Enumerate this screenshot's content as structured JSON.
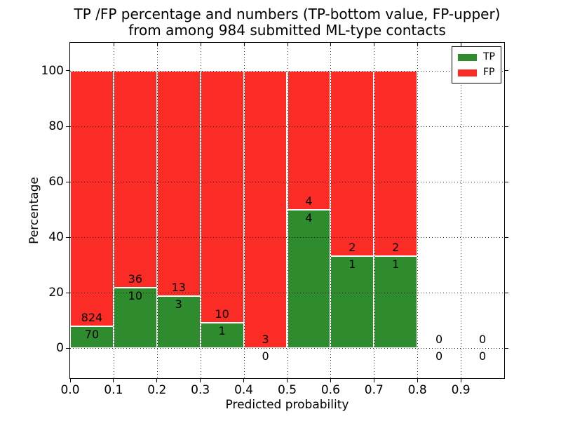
{
  "chart_data": {
    "type": "bar",
    "stacked": true,
    "title": "TP /FP percentage and numbers (TP-bottom value, FP-upper)\nfrom among 984 submitted ML-type contacts",
    "title_lines": [
      "TP /FP percentage and numbers (TP-bottom value, FP-upper)",
      "from among 984 submitted ML-type contacts"
    ],
    "xlabel": "Predicted probability",
    "ylabel": "Percentage",
    "total_contacts": 984,
    "categories": [
      "0.0",
      "0.1",
      "0.2",
      "0.3",
      "0.4",
      "0.5",
      "0.6",
      "0.7",
      "0.8",
      "0.9"
    ],
    "bin_width": 0.1,
    "series": [
      {
        "name": "TP",
        "color": "#2e8b2e",
        "counts": [
          70,
          10,
          3,
          1,
          0,
          4,
          1,
          1,
          0,
          0
        ]
      },
      {
        "name": "FP",
        "color": "#fb2b25",
        "counts": [
          824,
          36,
          13,
          10,
          3,
          4,
          2,
          2,
          0,
          0
        ]
      }
    ],
    "tp_percent_by_bin": [
      7.83,
      21.74,
      18.75,
      9.09,
      0.0,
      50.0,
      33.33,
      33.33,
      0.0,
      0.0
    ],
    "yticks": [
      0,
      20,
      40,
      60,
      80,
      100
    ],
    "ylim": [
      -10.8,
      110.1
    ],
    "xlim": [
      0.0,
      1.0
    ],
    "grid": true,
    "gridline_style": "dotted",
    "legend": {
      "position": "upper right",
      "entries": [
        {
          "label": "TP",
          "color": "#2e8b2e"
        },
        {
          "label": "FP",
          "color": "#fb2b25"
        }
      ]
    }
  }
}
